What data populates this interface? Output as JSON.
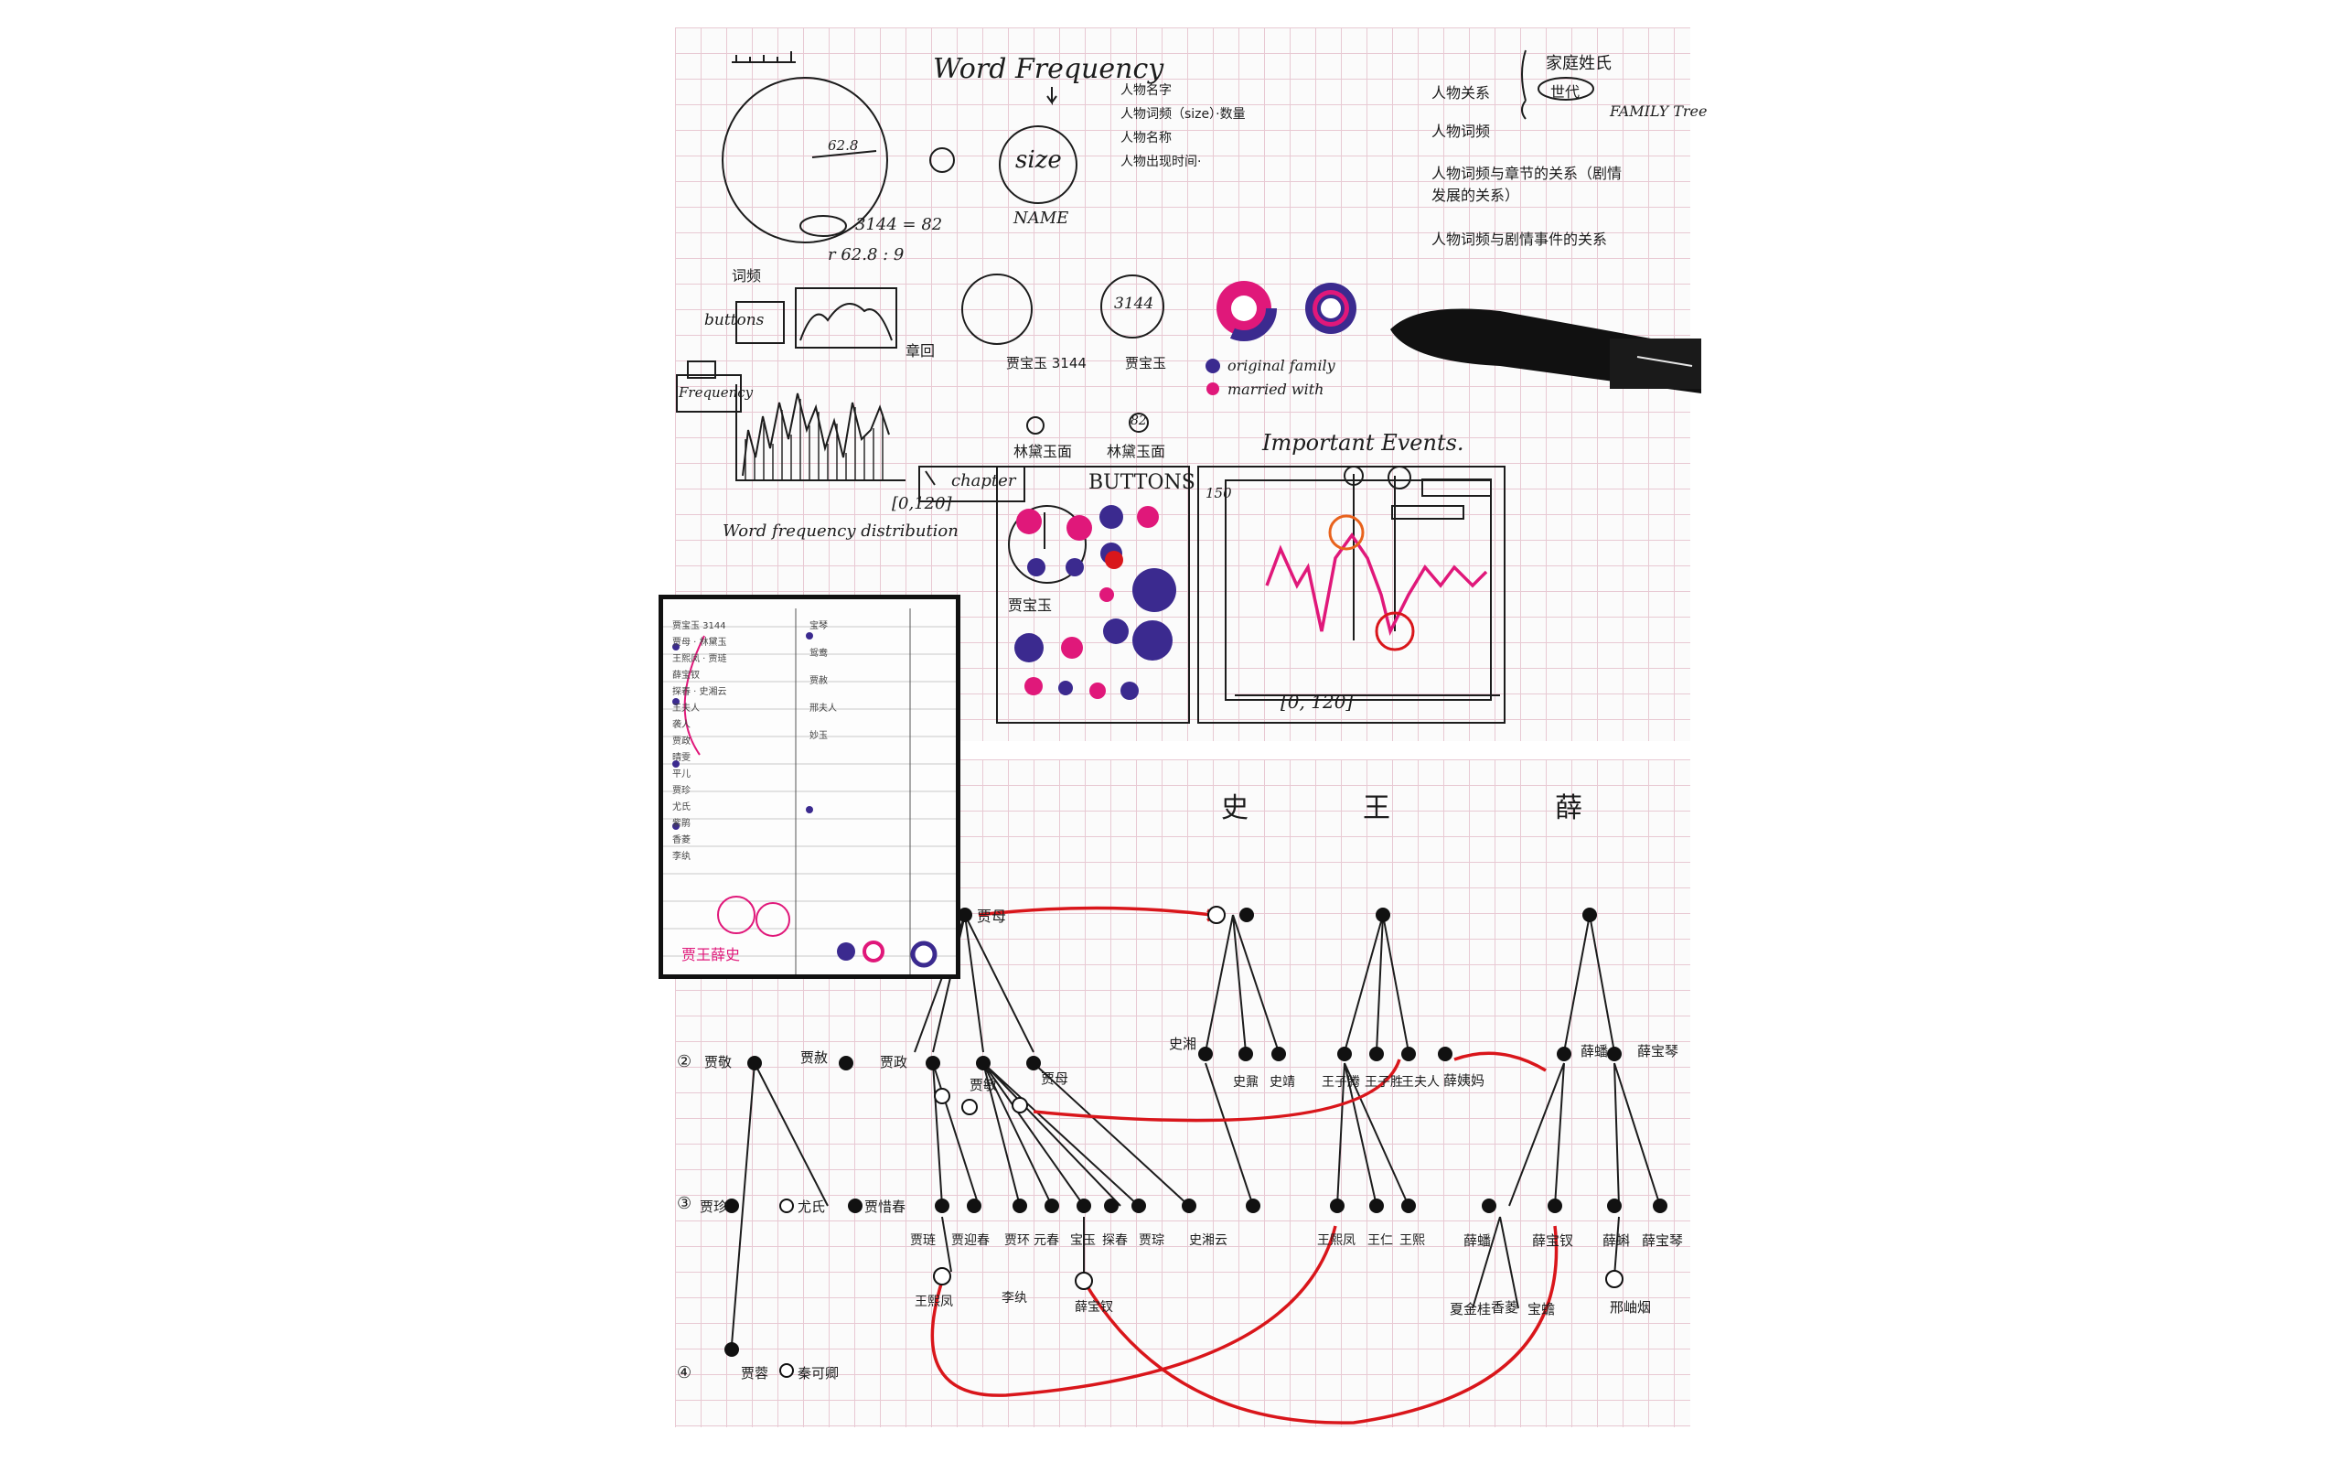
{
  "colors": {
    "ink": "#1c1c1c",
    "magenta": "#e0187a",
    "purple": "#3b2a8f",
    "red": "#d9161b",
    "orange": "#e8621c",
    "grid": "#e8c9d3"
  },
  "top_section": {
    "title": "Word Frequency",
    "size_circle": {
      "label": "size",
      "name_label": "NAME"
    },
    "formula": {
      "line1": "3144 = 82",
      "line2": "r  62.8 : 9"
    },
    "radius_label": "62.8",
    "numbered_list_mid": [
      "人物名字",
      "人物词频（size）·数量",
      "人物名称",
      "人物出现时间·"
    ],
    "numbered_list_right": [
      "人物关系",
      "人物词频",
      "人物词频与章节的关系（剧情发展的关系）",
      "人物词频与剧情事件的关系"
    ],
    "family_note": {
      "label1": "家庭姓氏",
      "label2": "世代",
      "label3": "FAMILY Tree"
    },
    "legend_circles": {
      "label1": "贾宝玉 3144",
      "label2": "贾宝玉",
      "inner_text": "3144"
    },
    "legend": {
      "original": "original family",
      "married": "married with"
    },
    "word_freq_distribution": {
      "ylabel": "Frequency",
      "xrange": "[0,120]",
      "chapter_label": "chapter",
      "caption": "Word frequency distribution",
      "buttons_label": "buttons",
      "small_label": "词频",
      "chapter_cn": "章回"
    },
    "buttons_panel": {
      "title": "BUTTONS",
      "label_a": "林黛玉面",
      "label_b": "林黛玉面",
      "count_a": "82",
      "name_label": "贾宝玉"
    },
    "events_panel": {
      "title": "Important Events.",
      "ylabel": "150",
      "xrange": "[0, 120]"
    }
  },
  "family_tree": {
    "surnames": [
      "史",
      "王",
      "薛"
    ],
    "gen1": [
      "贾母"
    ],
    "gen2": [
      "贾敬",
      "贾赦",
      "贾政",
      "贾敏",
      "贾母",
      "史湘",
      "史鼐",
      "史靖",
      "王子腾",
      "王子胜",
      "王夫人",
      "薛姨妈",
      "薛蟠",
      "薛宝琴"
    ],
    "gen3": [
      "贾珍",
      "尤氏",
      "贾惜春",
      "贾琏",
      "贾迎春",
      "贾环",
      "元春",
      "宝玉",
      "探春",
      "贾琮",
      "史湘云",
      "王熙凤",
      "王仁",
      "王熙",
      "薛蟠",
      "薛宝钗",
      "薛蝌",
      "薛宝琴"
    ],
    "gen4": [
      "王熙凤",
      "李纨",
      "薛宝钗",
      "贾蓉",
      "秦可卿",
      "香菱",
      "夏金桂",
      "宝蟾",
      "邢岫烟"
    ],
    "row_marks": [
      "②",
      "③",
      "④"
    ]
  },
  "inset_photo": {
    "rows": [
      "贾宝玉 3144",
      "贾母 · 林黛玉",
      "王熙凤 · 贾琏",
      "薛宝钗",
      "探春 · 史湘云",
      "王夫人",
      "袭人",
      "贾政",
      "晴雯",
      "平儿",
      "贾珍",
      "尤氏",
      "紫鹃",
      "香菱",
      "李纨",
      "宝琴",
      "鸳鸯",
      "贾赦",
      "邢夫人",
      "妙玉"
    ],
    "caption": "贾王薛史"
  }
}
